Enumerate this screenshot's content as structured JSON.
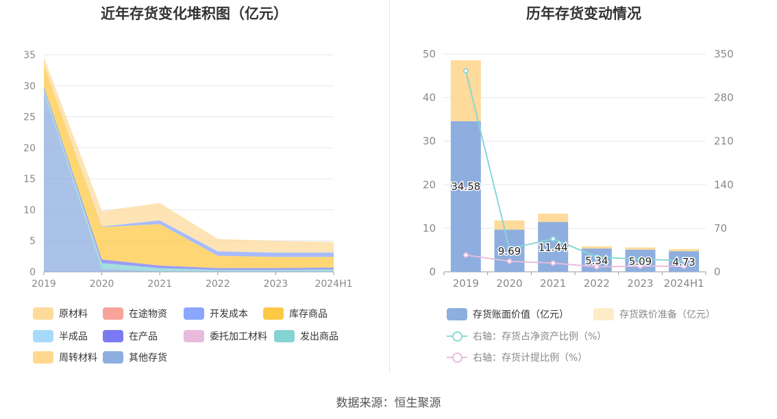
{
  "source_label": "数据来源：恒生聚源",
  "chart_data": [
    {
      "type": "area",
      "stacked": true,
      "title": "近年存货变化堆积图（亿元）",
      "categories": [
        "2019",
        "2020",
        "2021",
        "2022",
        "2023",
        "2024H1"
      ],
      "ylim": [
        0,
        35
      ],
      "yticks": [
        "0",
        "5",
        "10",
        "15",
        "20",
        "25",
        "30",
        "35"
      ],
      "grid": true,
      "legend_position": "bottom",
      "series": [
        {
          "name": "原材料",
          "color": "#fedb9b",
          "values": [
            1.2,
            2.5,
            2.8,
            2.0,
            1.9,
            1.7
          ]
        },
        {
          "name": "在途物资",
          "color": "#f7a399",
          "values": [
            0,
            0,
            0,
            0,
            0,
            0
          ]
        },
        {
          "name": "开发成本",
          "color": "#8aa6ff",
          "values": [
            0,
            0.1,
            0.6,
            0.7,
            0.7,
            0.7
          ]
        },
        {
          "name": "库存商品",
          "color": "#fdc945",
          "values": [
            3.5,
            5.2,
            6.7,
            2.0,
            1.8,
            1.7
          ]
        },
        {
          "name": "半成品",
          "color": "#a7dafa",
          "values": [
            0,
            0,
            0,
            0,
            0,
            0
          ]
        },
        {
          "name": "在产品",
          "color": "#7a7bf2",
          "values": [
            0.3,
            0.6,
            0.4,
            0.3,
            0.3,
            0.3
          ]
        },
        {
          "name": "委托加工材料",
          "color": "#e8bbdc",
          "values": [
            0,
            0,
            0,
            0,
            0,
            0
          ]
        },
        {
          "name": "发出商品",
          "color": "#85d4d4",
          "values": [
            0.6,
            0.9,
            0.5,
            0.2,
            0.2,
            0.3
          ]
        },
        {
          "name": "周转材料",
          "color": "#fed88f",
          "values": [
            0,
            0,
            0,
            0,
            0,
            0
          ]
        },
        {
          "name": "其他存货",
          "color": "#8daedf",
          "values": [
            28.98,
            0.5,
            0.1,
            0.1,
            0.1,
            0.1
          ]
        }
      ]
    },
    {
      "type": "bar",
      "stacked": true,
      "title": "历年存货变动情况",
      "categories": [
        "2019",
        "2020",
        "2021",
        "2022",
        "2023",
        "2024H1"
      ],
      "ylim": [
        0,
        50
      ],
      "yticks": [
        "0",
        "10",
        "20",
        "30",
        "40",
        "50"
      ],
      "y2lim": [
        0,
        350
      ],
      "y2ticks": [
        "0",
        "70",
        "140",
        "210",
        "280",
        "350"
      ],
      "grid": true,
      "legend_position": "bottom",
      "series": [
        {
          "name": "存货账面价值（亿元）",
          "color": "#8daedf",
          "values": [
            34.58,
            9.69,
            11.44,
            5.34,
            5.09,
            4.73
          ],
          "labels": [
            "34.58",
            "9.69",
            "11.44",
            "5.34",
            "5.09",
            "4.73"
          ]
        },
        {
          "name": "存货跌价准备（亿元）",
          "color": "#fedb9b",
          "values": [
            14.0,
            2.1,
            1.9,
            0.5,
            0.5,
            0.5
          ]
        }
      ],
      "lines": [
        {
          "name": "右轴：存货占净资产比例（%）",
          "color": "#8ad6d6",
          "axis": "right",
          "values": [
            323,
            37,
            53,
            24,
            20,
            18
          ]
        },
        {
          "name": "右轴：存货计提比例（%）",
          "color": "#e8bbdc",
          "axis": "right",
          "values": [
            27,
            17,
            14,
            8,
            9,
            9
          ]
        }
      ]
    }
  ]
}
